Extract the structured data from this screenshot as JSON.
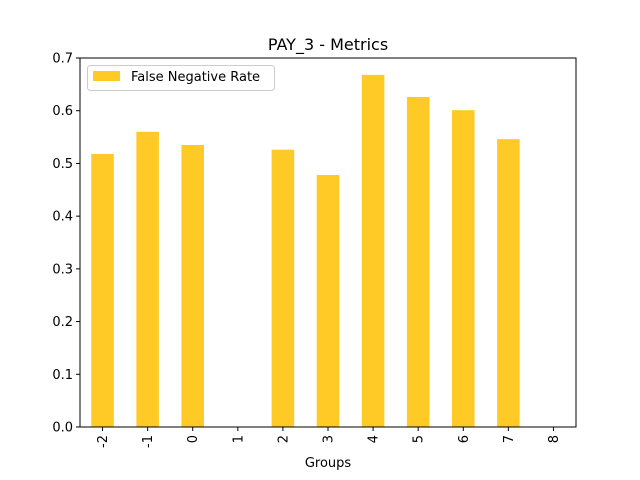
{
  "chart_data": {
    "type": "bar",
    "title": "PAY_3 - Metrics",
    "xlabel": "Groups",
    "ylabel": "",
    "categories": [
      "-2",
      "-1",
      "0",
      "1",
      "2",
      "3",
      "4",
      "5",
      "6",
      "7",
      "8"
    ],
    "series": [
      {
        "name": "False Negative Rate",
        "color": "#FFC926",
        "values": [
          0.518,
          0.56,
          0.535,
          0.0,
          0.526,
          0.478,
          0.668,
          0.626,
          0.601,
          0.546,
          0.0
        ]
      }
    ],
    "ylim": [
      0,
      0.7
    ],
    "yticks": [
      "0.0",
      "0.1",
      "0.2",
      "0.3",
      "0.4",
      "0.5",
      "0.6",
      "0.7"
    ],
    "grid": false,
    "legend": "top-left",
    "xtick_rotation": 90
  }
}
